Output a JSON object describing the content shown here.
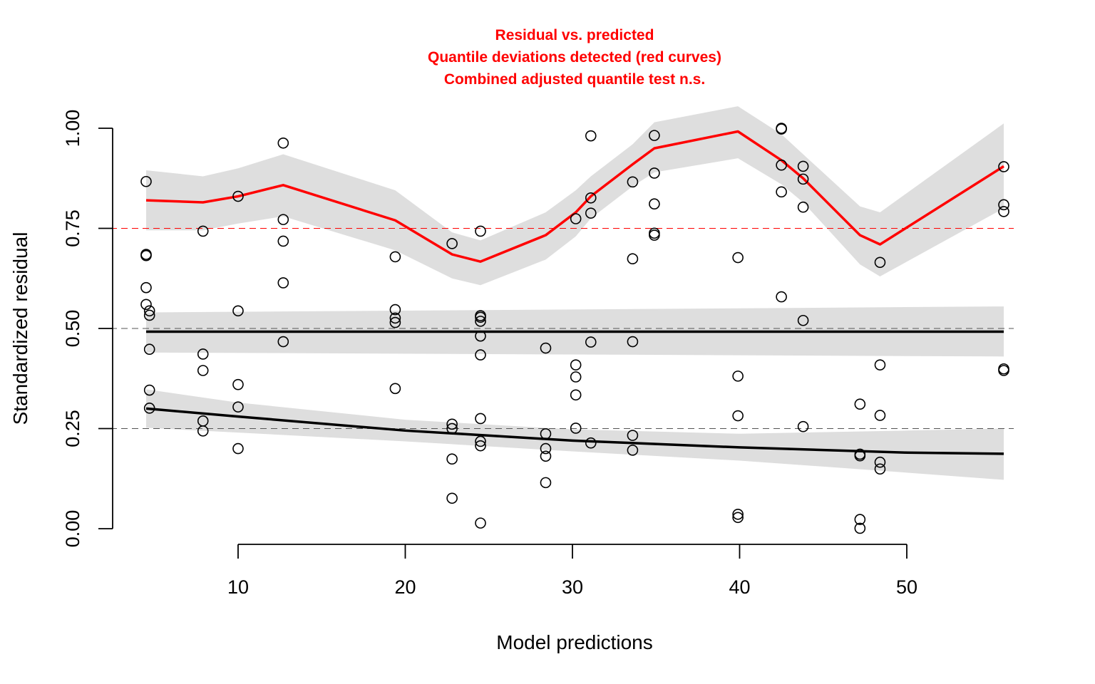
{
  "chart_data": {
    "type": "scatter",
    "title_lines": [
      "Residual vs. predicted",
      "Quantile deviations detected (red curves)",
      "Combined adjusted quantile test n.s."
    ],
    "title_color": "#ff0000",
    "xlabel": "Model predictions",
    "ylabel": "Standardized residual",
    "xlim": [
      4.5,
      55.8
    ],
    "ylim": [
      0,
      1
    ],
    "x_ticks": [
      10,
      20,
      30,
      40,
      50
    ],
    "x_tick_labels": [
      "10",
      "20",
      "30",
      "40",
      "50"
    ],
    "y_ticks": [
      0,
      0.25,
      0.5,
      0.75,
      1
    ],
    "y_tick_labels": [
      "0.00",
      "0.25",
      "0.50",
      "0.75",
      "1.00"
    ],
    "reference_lines": [
      {
        "y": 0.25,
        "color": "#555555",
        "style": "dashed"
      },
      {
        "y": 0.5,
        "color": "#555555",
        "style": "dashed"
      },
      {
        "y": 0.75,
        "color": "#ff0000",
        "style": "dashed"
      }
    ],
    "band_color": "#dedede",
    "points": [
      [
        4.5,
        0.867
      ],
      [
        4.5,
        0.685
      ],
      [
        4.5,
        0.682
      ],
      [
        4.5,
        0.602
      ],
      [
        4.5,
        0.56
      ],
      [
        4.7,
        0.544
      ],
      [
        4.7,
        0.533
      ],
      [
        4.7,
        0.448
      ],
      [
        4.7,
        0.346
      ],
      [
        4.7,
        0.301
      ],
      [
        7.9,
        0.743
      ],
      [
        7.9,
        0.436
      ],
      [
        7.9,
        0.395
      ],
      [
        7.9,
        0.269
      ],
      [
        7.9,
        0.244
      ],
      [
        10.0,
        0.83
      ],
      [
        10.0,
        0.544
      ],
      [
        10.0,
        0.36
      ],
      [
        10.0,
        0.304
      ],
      [
        10.0,
        0.2
      ],
      [
        12.7,
        0.963
      ],
      [
        12.7,
        0.772
      ],
      [
        12.7,
        0.718
      ],
      [
        12.7,
        0.614
      ],
      [
        12.7,
        0.467
      ],
      [
        19.4,
        0.679
      ],
      [
        19.4,
        0.547
      ],
      [
        19.4,
        0.526
      ],
      [
        19.4,
        0.515
      ],
      [
        19.4,
        0.35
      ],
      [
        22.8,
        0.712
      ],
      [
        22.8,
        0.261
      ],
      [
        22.8,
        0.25
      ],
      [
        22.8,
        0.174
      ],
      [
        22.8,
        0.076
      ],
      [
        24.5,
        0.743
      ],
      [
        24.5,
        0.532
      ],
      [
        24.5,
        0.528
      ],
      [
        24.5,
        0.518
      ],
      [
        24.5,
        0.481
      ],
      [
        24.5,
        0.434
      ],
      [
        24.5,
        0.275
      ],
      [
        24.5,
        0.218
      ],
      [
        24.5,
        0.207
      ],
      [
        24.5,
        0.014
      ],
      [
        28.4,
        0.451
      ],
      [
        28.4,
        0.237
      ],
      [
        28.4,
        0.2
      ],
      [
        28.4,
        0.181
      ],
      [
        28.4,
        0.115
      ],
      [
        30.2,
        0.774
      ],
      [
        30.2,
        0.409
      ],
      [
        30.2,
        0.379
      ],
      [
        30.2,
        0.334
      ],
      [
        30.2,
        0.251
      ],
      [
        31.1,
        0.981
      ],
      [
        31.1,
        0.826
      ],
      [
        31.1,
        0.788
      ],
      [
        31.1,
        0.466
      ],
      [
        31.1,
        0.214
      ],
      [
        33.6,
        0.866
      ],
      [
        33.6,
        0.674
      ],
      [
        33.6,
        0.467
      ],
      [
        33.6,
        0.233
      ],
      [
        33.6,
        0.196
      ],
      [
        34.9,
        0.982
      ],
      [
        34.9,
        0.888
      ],
      [
        34.9,
        0.811
      ],
      [
        34.9,
        0.738
      ],
      [
        34.9,
        0.733
      ],
      [
        39.9,
        0.677
      ],
      [
        39.9,
        0.381
      ],
      [
        39.9,
        0.282
      ],
      [
        39.9,
        0.036
      ],
      [
        39.9,
        0.028
      ],
      [
        42.5,
        1.0
      ],
      [
        42.5,
        0.998
      ],
      [
        42.5,
        0.908
      ],
      [
        42.5,
        0.841
      ],
      [
        42.5,
        0.579
      ],
      [
        43.8,
        0.905
      ],
      [
        43.8,
        0.873
      ],
      [
        43.8,
        0.803
      ],
      [
        43.8,
        0.52
      ],
      [
        43.8,
        0.255
      ],
      [
        47.2,
        0.311
      ],
      [
        47.2,
        0.186
      ],
      [
        47.2,
        0.182
      ],
      [
        47.2,
        0.023
      ],
      [
        47.2,
        0.001
      ],
      [
        48.4,
        0.665
      ],
      [
        48.4,
        0.409
      ],
      [
        48.4,
        0.283
      ],
      [
        48.4,
        0.166
      ],
      [
        48.4,
        0.149
      ],
      [
        55.8,
        0.904
      ],
      [
        55.8,
        0.809
      ],
      [
        55.8,
        0.792
      ],
      [
        55.8,
        0.399
      ],
      [
        55.8,
        0.395
      ]
    ],
    "quantile_curves": [
      {
        "quantile": 0.75,
        "color": "#ff0000",
        "x": [
          4.5,
          7.9,
          10.0,
          12.7,
          19.4,
          22.8,
          24.5,
          28.4,
          30.2,
          31.1,
          33.6,
          34.9,
          39.9,
          42.5,
          43.8,
          47.2,
          48.4,
          55.8
        ],
        "y": [
          0.82,
          0.815,
          0.83,
          0.858,
          0.77,
          0.685,
          0.667,
          0.733,
          0.79,
          0.83,
          0.91,
          0.95,
          0.992,
          0.92,
          0.875,
          0.733,
          0.71,
          0.905
        ],
        "band_upper": [
          0.895,
          0.88,
          0.9,
          0.935,
          0.845,
          0.74,
          0.72,
          0.79,
          0.845,
          0.88,
          0.96,
          1.015,
          1.055,
          0.985,
          0.935,
          0.805,
          0.79,
          1.012
        ],
        "band_lower": [
          0.745,
          0.745,
          0.762,
          0.78,
          0.695,
          0.625,
          0.608,
          0.672,
          0.73,
          0.775,
          0.855,
          0.89,
          0.925,
          0.86,
          0.815,
          0.66,
          0.63,
          0.8
        ]
      },
      {
        "quantile": 0.5,
        "color": "#000000",
        "x": [
          4.5,
          55.8
        ],
        "y": [
          0.492,
          0.492
        ],
        "band_upper": [
          0.54,
          0.555
        ],
        "band_lower": [
          0.44,
          0.43
        ]
      },
      {
        "quantile": 0.25,
        "color": "#000000",
        "x": [
          4.5,
          10.0,
          20.0,
          30.0,
          40.0,
          50.0,
          55.8
        ],
        "y": [
          0.3,
          0.28,
          0.245,
          0.22,
          0.203,
          0.19,
          0.187
        ],
        "band_upper": [
          0.348,
          0.315,
          0.272,
          0.248,
          0.237,
          0.245,
          0.25
        ],
        "band_lower": [
          0.252,
          0.24,
          0.218,
          0.193,
          0.17,
          0.14,
          0.122
        ]
      }
    ]
  }
}
